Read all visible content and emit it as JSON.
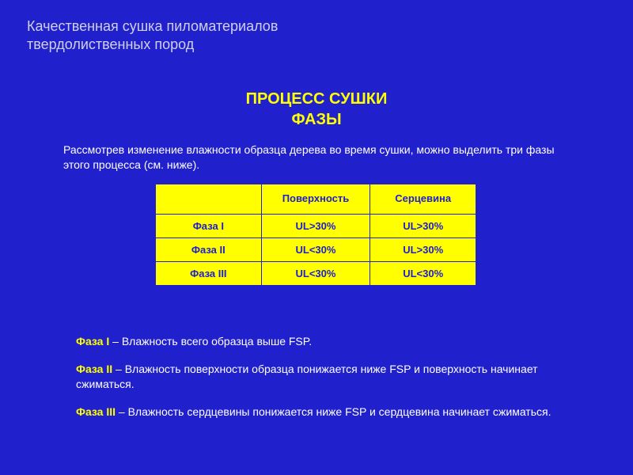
{
  "colors": {
    "background": "#2020cc",
    "header_text": "#d0d0e8",
    "accent": "#ffff00",
    "body_text": "#ffffff",
    "table_bg": "#ffff00",
    "table_text": "#2020cc",
    "table_border": "#2020cc"
  },
  "typography": {
    "header_fontsize": 18,
    "title_fontsize": 20,
    "body_fontsize": 14,
    "table_fontsize": 13,
    "font_family": "Arial, sans-serif"
  },
  "header": {
    "line1": "Качественная сушка пиломатериалов",
    "line2": "твердолиственных пород"
  },
  "title": {
    "line1": "ПРОЦЕСС СУШКИ",
    "line2": "ФАЗЫ"
  },
  "intro": "Рассмотрев изменение влажности образца дерева во время сушки, можно выделить три  фазы этого процесса (см. ниже).",
  "table": {
    "columns": [
      "",
      "Поверхность",
      "Серцевина"
    ],
    "rows": [
      [
        "Фаза I",
        "UL>30%",
        "UL>30%"
      ],
      [
        "Фаза II",
        "UL<30%",
        "UL>30%"
      ],
      [
        "Фаза III",
        "UL<30%",
        "UL<30%"
      ]
    ],
    "col_widths_pct": [
      33,
      34,
      33
    ]
  },
  "notes": [
    {
      "label": "Фаза I",
      "text": " – Влажность всего образца выше FSP."
    },
    {
      "label": "Фаза II",
      "text": " – Влажность поверхности образца понижается ниже FSP и поверхность начинает сжиматься."
    },
    {
      "label": "Фаза III",
      "text": " – Влажность сердцевины понижается ниже FSP и сердцевина начинает сжиматься."
    }
  ]
}
